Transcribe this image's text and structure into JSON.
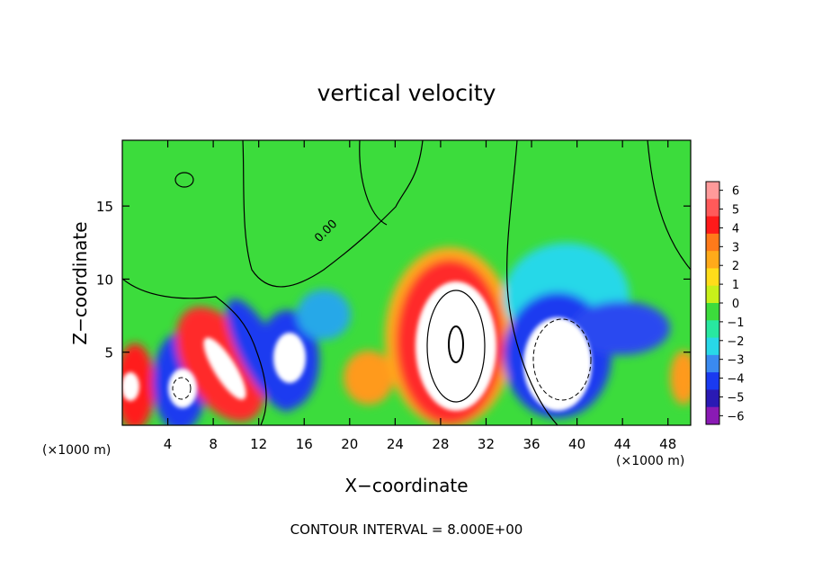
{
  "chart_data": {
    "type": "heatmap",
    "title": "vertical velocity",
    "xlabel": "X−coordinate",
    "ylabel": "Z−coordinate",
    "x_units_left": "(×1000 m)",
    "x_units_right": "(×1000 m)",
    "footer": "CONTOUR INTERVAL = 8.000E+00",
    "xlim": [
      0,
      50
    ],
    "ylim": [
      0,
      19.5
    ],
    "xticks": [
      4,
      8,
      12,
      16,
      20,
      24,
      28,
      32,
      36,
      40,
      44,
      48
    ],
    "yticks": [
      5,
      10,
      15
    ],
    "contour_label": "0.00",
    "colorbar": {
      "min": -6,
      "max": 6,
      "ticks": [
        6,
        5,
        4,
        3,
        2,
        1,
        0,
        -1,
        -2,
        -3,
        -4,
        -5,
        -6
      ],
      "tick_labels": [
        "6",
        "5",
        "4",
        "3",
        "2",
        "1",
        "0",
        "−1",
        "−2",
        "−3",
        "−4",
        "−5",
        "−6"
      ],
      "colors": [
        "#ff9a9a",
        "#ff5a5a",
        "#ff1a1a",
        "#ff7a1a",
        "#ffaa1a",
        "#ffdd1a",
        "#c8f01a",
        "#3cdc3c",
        "#28e8a0",
        "#28d8e8",
        "#3a8af0",
        "#1a3af0",
        "#2a1ab4",
        "#8a1ab4"
      ]
    },
    "features": [
      {
        "label": "updraft",
        "x": 1,
        "z": 2.5,
        "value": 6
      },
      {
        "label": "downdraft",
        "x": 4.5,
        "z": 2.5,
        "value": -6
      },
      {
        "label": "updraft",
        "x": 8.5,
        "z": 4.5,
        "value": 6
      },
      {
        "label": "downdraft",
        "x": 14,
        "z": 5,
        "value": -6
      },
      {
        "label": "updraft",
        "x": 29,
        "z": 5.5,
        "value": 8
      },
      {
        "label": "downdraft",
        "x": 39.5,
        "z": 4.5,
        "value": -8
      }
    ]
  }
}
